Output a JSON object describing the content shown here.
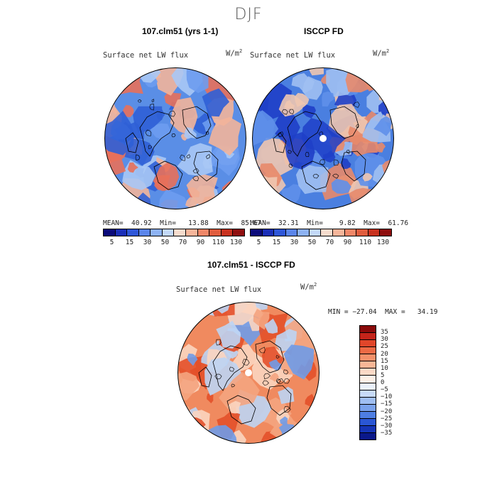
{
  "title": "DJF",
  "panels": [
    {
      "title": "107.clm51 (yrs 1-1)",
      "variable": "Surface net LW flux",
      "units_base": "W/m",
      "units_exp": "2",
      "stats": "MEAN=  40.92  Min=   13.88  Max=  85.67",
      "base_color": "#5a8ee6",
      "colors": {
        "deep": "#2f5fd6",
        "mid": "#6d9cf0",
        "light": "#a9c8f5",
        "warm": "#f2b49a",
        "hot": "#e8705a"
      }
    },
    {
      "title": "ISCCP FD",
      "variable": "Surface net LW flux",
      "units_base": "W/m",
      "units_exp": "2",
      "stats": "MEAN=  32.31  Min=    9.82  Max=  61.76",
      "base_color": "#4a7fe0",
      "colors": {
        "deep": "#1f3fc8",
        "mid": "#5f90ea",
        "light": "#a0c0f2",
        "warm": "#f0c6b0",
        "hot": "#e88a6a"
      }
    }
  ],
  "abs_colorbar": {
    "colors": [
      "#0a0a7a",
      "#1a2fb8",
      "#2e56d8",
      "#5a85ea",
      "#8db2f3",
      "#c3d9f8",
      "#f6dccd",
      "#f6b59a",
      "#ef8768",
      "#e05d3e",
      "#c8321f",
      "#8f0f0f"
    ],
    "ticks": [
      "5",
      "15",
      "30",
      "50",
      "70",
      "90",
      "110",
      "130"
    ]
  },
  "diff_panel": {
    "title": "107.clm51 - ISCCP FD",
    "variable": "Surface net LW flux",
    "units_base": "W/m",
    "units_exp": "2",
    "stats": "MIN = −27.04  MAX =   34.19",
    "base_color": "#f08a5f",
    "colors": {
      "deep": "#e3502a",
      "mid": "#f4a47f",
      "light": "#fbd5c0",
      "cool": "#bcd4f4",
      "cold": "#6f9be8"
    }
  },
  "diff_colorbar": {
    "colors": [
      "#8a0a0a",
      "#c4241a",
      "#e0462a",
      "#ed6a45",
      "#f4906a",
      "#f8b696",
      "#fbd9c6",
      "#fdf0e6",
      "#eaf1fb",
      "#c7daf7",
      "#9fbef2",
      "#7aa2ec",
      "#4e7ee2",
      "#2a56d4",
      "#1534b6",
      "#0a188a"
    ],
    "ticks": [
      "35",
      "30",
      "25",
      "20",
      "15",
      "10",
      "5",
      "0",
      "−5",
      "−10",
      "−15",
      "−20",
      "−25",
      "−30",
      "−35"
    ]
  }
}
